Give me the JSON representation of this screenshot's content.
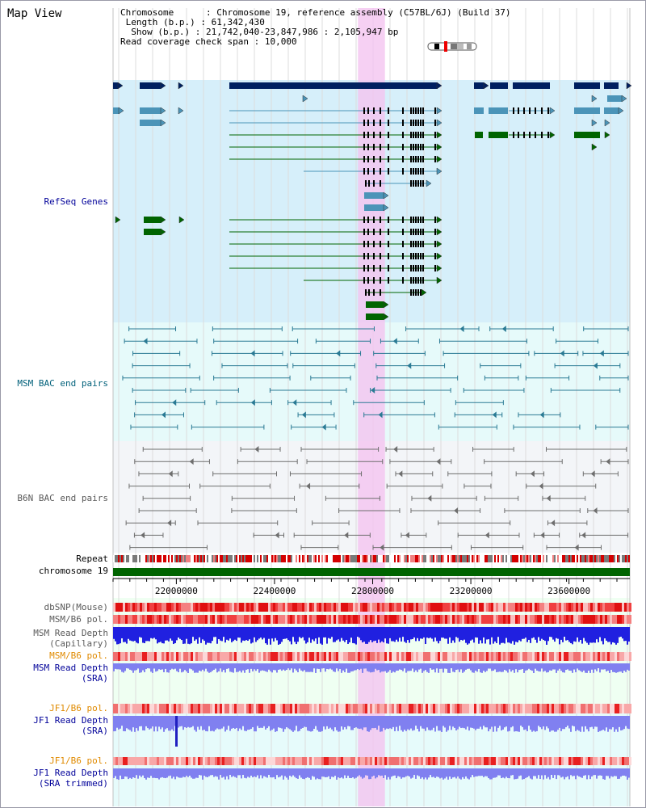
{
  "title": "Map View",
  "header": {
    "chromosome_key": "Chromosome",
    "chromosome_val": "Chromosome 19, reference assembly (C57BL/6J) (Build 37)",
    "length_key": "Length (b.p.)",
    "length_val": "61,342,430",
    "show_key": "Show (b.p.)",
    "show_val": "21,742,040-23,847,986 : 2,105,947 bp",
    "span_key": "Read coverage check span",
    "span_val": "10,000"
  },
  "tracks": {
    "refseq": "RefSeq Genes",
    "msm_bac": "MSM BAC end pairs",
    "b6n_bac": "B6N BAC end pairs",
    "repeat": "Repeat",
    "chromosome": "chromosome 19",
    "dbsnp": "dbSNP(Mouse)",
    "msm_b6_pol_1": "MSM/B6 pol.",
    "msm_cap_1": "MSM Read Depth",
    "msm_cap_2": "(Capillary)",
    "msm_b6_pol_2": "MSM/B6 pol.",
    "msm_sra_1": "MSM Read Depth",
    "msm_sra_2": "(SRA)",
    "jf1_b6_pol_1": "JF1/B6 pol.",
    "jf1_sra_1": "JF1 Read Depth",
    "jf1_sra_2": "(SRA)",
    "jf1_b6_pol_2": "JF1/B6 pol.",
    "jf1_trim_1": "JF1 Read Depth",
    "jf1_trim_2": "(SRA trimmed)"
  },
  "axis": {
    "ticks": [
      "22000000",
      "22400000",
      "22800000",
      "23200000",
      "23600000"
    ],
    "tick_values": [
      22000000,
      22400000,
      22800000,
      23200000,
      23600000
    ],
    "range": [
      21742040,
      23847986
    ]
  },
  "highlight": {
    "start": 22740000,
    "end": 22850000
  },
  "colors": {
    "navy_gene": "#002060",
    "blue_gene": "#4b94b8",
    "green_gene": "#006400",
    "refseq_bg": "#d6effa",
    "bac_bg": "#e6fafa",
    "b6n_bg": "#f3f5f8",
    "highlight": "#f4c4f0",
    "read_depth": "#2020e0",
    "read_depth_light": "#8080f0",
    "label_navy": "#000099",
    "label_orange": "#e08a00"
  }
}
